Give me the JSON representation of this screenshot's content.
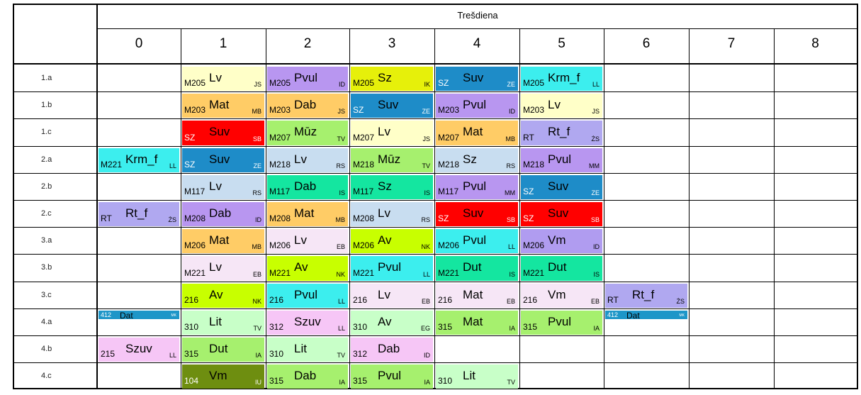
{
  "day": "Trešdiena",
  "periods": [
    "0",
    "1",
    "2",
    "3",
    "4",
    "5",
    "6",
    "7",
    "8"
  ],
  "colors": {
    "lv": "#ffffc8",
    "mat": "#ffcc66",
    "suv": "#1e8cc8",
    "suvRed": "#ff0000",
    "sz": "#e6f00a",
    "pvul": "#b896f0",
    "krm": "#3ceeee",
    "dab": "#a0b4f0",
    "muz": "#a6f06e",
    "rt": "#b0a8f0",
    "szuv": "#f6c6f6",
    "lit": "#c8ffc8",
    "av": "#c8ff00",
    "dut": "#14e6a0",
    "vm": "#b09cf0",
    "vmDark": "#6e8e10",
    "dat": "#1e96c8",
    "lvPink": "#f6e6f6",
    "lvBlue": "#c8ddf0"
  },
  "rows": [
    {
      "cls": "1.a",
      "lessons": [
        {
          "p": 1,
          "room": "M205",
          "subj": "Lv",
          "tch": "JS",
          "c": "lv"
        },
        {
          "p": 2,
          "room": "M205",
          "subj": "Pvul",
          "tch": "ID",
          "c": "pvul"
        },
        {
          "p": 3,
          "room": "M205",
          "subj": "Sz",
          "tch": "IK",
          "c": "sz"
        },
        {
          "p": 4,
          "room": "SZ",
          "subj": "Suv",
          "tch": "ZE",
          "c": "suv"
        },
        {
          "p": 5,
          "room": "M205",
          "subj": "Krm_f",
          "tch": "LL",
          "c": "krm"
        }
      ]
    },
    {
      "cls": "1.b",
      "lessons": [
        {
          "p": 1,
          "room": "M203",
          "subj": "Mat",
          "tch": "MB",
          "c": "mat"
        },
        {
          "p": 2,
          "room": "M203",
          "subj": "Dab",
          "tch": "JS",
          "c": "mat"
        },
        {
          "p": 3,
          "room": "SZ",
          "subj": "Suv",
          "tch": "ZE",
          "c": "suv"
        },
        {
          "p": 4,
          "room": "M203",
          "subj": "Pvul",
          "tch": "ID",
          "c": "pvul"
        },
        {
          "p": 5,
          "room": "M203",
          "subj": "Lv",
          "tch": "JS",
          "c": "lv"
        }
      ]
    },
    {
      "cls": "1.c",
      "lessons": [
        {
          "p": 1,
          "room": "SZ",
          "subj": "Suv",
          "tch": "SB",
          "c": "suvRed"
        },
        {
          "p": 2,
          "room": "M207",
          "subj": "Mūz",
          "tch": "TV",
          "c": "muz"
        },
        {
          "p": 3,
          "room": "M207",
          "subj": "Lv",
          "tch": "JS",
          "c": "lv"
        },
        {
          "p": 4,
          "room": "M207",
          "subj": "Mat",
          "tch": "MB",
          "c": "mat"
        },
        {
          "p": 5,
          "room": "RT",
          "subj": "Rt_f",
          "tch": "ŻS",
          "c": "rt"
        }
      ]
    },
    {
      "cls": "2.a",
      "lessons": [
        {
          "p": 0,
          "room": "M221",
          "subj": "Krm_f",
          "tch": "LL",
          "c": "krm"
        },
        {
          "p": 1,
          "room": "SZ",
          "subj": "Suv",
          "tch": "ZE",
          "c": "suv"
        },
        {
          "p": 2,
          "room": "M218",
          "subj": "Lv",
          "tch": "RS",
          "c": "lvBlue"
        },
        {
          "p": 3,
          "room": "M218",
          "subj": "Mūz",
          "tch": "TV",
          "c": "muz"
        },
        {
          "p": 4,
          "room": "M218",
          "subj": "Sz",
          "tch": "RS",
          "c": "lvBlue"
        },
        {
          "p": 5,
          "room": "M218",
          "subj": "Pvul",
          "tch": "MM",
          "c": "pvul"
        }
      ]
    },
    {
      "cls": "2.b",
      "lessons": [
        {
          "p": 1,
          "room": "M117",
          "subj": "Lv",
          "tch": "RS",
          "c": "lvBlue"
        },
        {
          "p": 2,
          "room": "M117",
          "subj": "Dab",
          "tch": "IS",
          "c": "dut"
        },
        {
          "p": 3,
          "room": "M117",
          "subj": "Sz",
          "tch": "IS",
          "c": "dut"
        },
        {
          "p": 4,
          "room": "M117",
          "subj": "Pvul",
          "tch": "MM",
          "c": "pvul"
        },
        {
          "p": 5,
          "room": "SZ",
          "subj": "Suv",
          "tch": "ZE",
          "c": "suv"
        }
      ]
    },
    {
      "cls": "2.c",
      "lessons": [
        {
          "p": 0,
          "room": "RT",
          "subj": "Rt_f",
          "tch": "ŻS",
          "c": "rt"
        },
        {
          "p": 1,
          "room": "M208",
          "subj": "Dab",
          "tch": "ID",
          "c": "pvul"
        },
        {
          "p": 2,
          "room": "M208",
          "subj": "Mat",
          "tch": "MB",
          "c": "mat"
        },
        {
          "p": 3,
          "room": "M208",
          "subj": "Lv",
          "tch": "RS",
          "c": "lvBlue"
        },
        {
          "p": 4,
          "room": "SZ",
          "subj": "Suv",
          "tch": "SB",
          "c": "suvRed"
        },
        {
          "p": 5,
          "room": "SZ",
          "subj": "Suv",
          "tch": "SB",
          "c": "suvRed"
        }
      ]
    },
    {
      "cls": "3.a",
      "lessons": [
        {
          "p": 1,
          "room": "M206",
          "subj": "Mat",
          "tch": "MB",
          "c": "mat"
        },
        {
          "p": 2,
          "room": "M206",
          "subj": "Lv",
          "tch": "EB",
          "c": "lvPink"
        },
        {
          "p": 3,
          "room": "M206",
          "subj": "Av",
          "tch": "NK",
          "c": "av"
        },
        {
          "p": 4,
          "room": "M206",
          "subj": "Pvul",
          "tch": "LL",
          "c": "krm"
        },
        {
          "p": 5,
          "room": "M206",
          "subj": "Vm",
          "tch": "ID",
          "c": "vm"
        }
      ]
    },
    {
      "cls": "3.b",
      "lessons": [
        {
          "p": 1,
          "room": "M221",
          "subj": "Lv",
          "tch": "EB",
          "c": "lvPink"
        },
        {
          "p": 2,
          "room": "M221",
          "subj": "Av",
          "tch": "NK",
          "c": "av"
        },
        {
          "p": 3,
          "room": "M221",
          "subj": "Pvul",
          "tch": "LL",
          "c": "krm"
        },
        {
          "p": 4,
          "room": "M221",
          "subj": "Dut",
          "tch": "IS",
          "c": "dut"
        },
        {
          "p": 5,
          "room": "M221",
          "subj": "Dut",
          "tch": "IS",
          "c": "dut"
        }
      ]
    },
    {
      "cls": "3.c",
      "lessons": [
        {
          "p": 1,
          "room": "216",
          "subj": "Av",
          "tch": "NK",
          "c": "av"
        },
        {
          "p": 2,
          "room": "216",
          "subj": "Pvul",
          "tch": "LL",
          "c": "krm"
        },
        {
          "p": 3,
          "room": "216",
          "subj": "Lv",
          "tch": "EB",
          "c": "lvPink"
        },
        {
          "p": 4,
          "room": "216",
          "subj": "Mat",
          "tch": "EB",
          "c": "lvPink"
        },
        {
          "p": 5,
          "room": "216",
          "subj": "Vm",
          "tch": "EB",
          "c": "lvPink"
        },
        {
          "p": 6,
          "room": "RT",
          "subj": "Rt_f",
          "tch": "ŻS",
          "c": "rt"
        }
      ]
    },
    {
      "cls": "4.a",
      "lessons": [
        {
          "p": 0,
          "room": "412",
          "subj": "Dat",
          "tch": "MK",
          "c": "dat",
          "small": true
        },
        {
          "p": 1,
          "room": "310",
          "subj": "Lit",
          "tch": "TV",
          "c": "lit"
        },
        {
          "p": 2,
          "room": "312",
          "subj": "Szuv",
          "tch": "LL",
          "c": "szuv"
        },
        {
          "p": 3,
          "room": "310",
          "subj": "Av",
          "tch": "EG",
          "c": "lit"
        },
        {
          "p": 4,
          "room": "315",
          "subj": "Mat",
          "tch": "IA",
          "c": "muz"
        },
        {
          "p": 5,
          "room": "315",
          "subj": "Pvul",
          "tch": "IA",
          "c": "muz"
        },
        {
          "p": 6,
          "room": "412",
          "subj": "Dat",
          "tch": "MK",
          "c": "dat",
          "small": true
        }
      ]
    },
    {
      "cls": "4.b",
      "lessons": [
        {
          "p": 0,
          "room": "215",
          "subj": "Szuv",
          "tch": "LL",
          "c": "szuv"
        },
        {
          "p": 1,
          "room": "315",
          "subj": "Dut",
          "tch": "IA",
          "c": "muz"
        },
        {
          "p": 2,
          "room": "310",
          "subj": "Lit",
          "tch": "TV",
          "c": "lit"
        },
        {
          "p": 3,
          "room": "312",
          "subj": "Dab",
          "tch": "ID",
          "c": "szuv"
        }
      ]
    },
    {
      "cls": "4.c",
      "lessons": [
        {
          "p": 1,
          "room": "104",
          "subj": "Vm",
          "tch": "IU",
          "c": "vmDark"
        },
        {
          "p": 2,
          "room": "315",
          "subj": "Dab",
          "tch": "IA",
          "c": "muz"
        },
        {
          "p": 3,
          "room": "315",
          "subj": "Pvul",
          "tch": "IA",
          "c": "muz"
        },
        {
          "p": 4,
          "room": "310",
          "subj": "Lit",
          "tch": "TV",
          "c": "lit"
        }
      ]
    }
  ]
}
